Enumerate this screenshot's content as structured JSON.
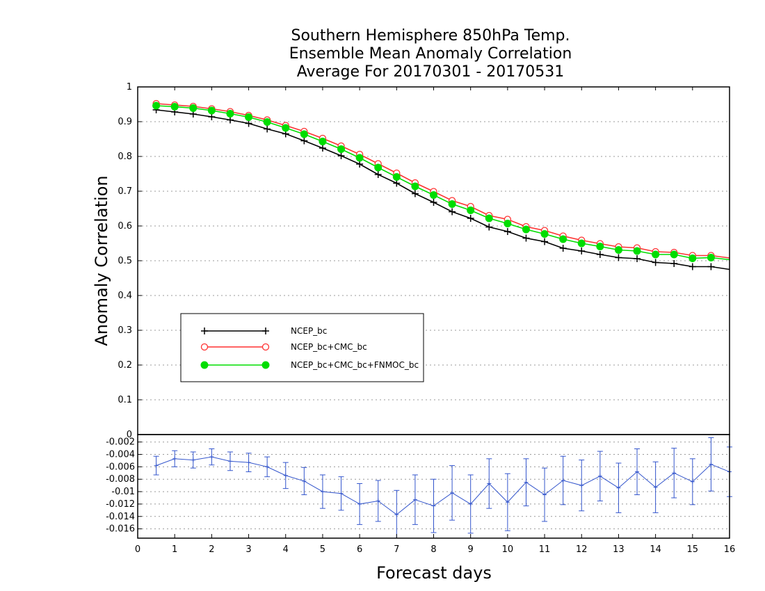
{
  "chart_data": {
    "type": "line",
    "title": [
      "Southern Hemisphere 850hPa Temp.",
      "Ensemble Mean Anomaly Correlation",
      "Average For 20170301 - 20170531"
    ],
    "xlabel": "Forecast days",
    "ylabel": "Anomaly Correlation",
    "xlim": [
      0,
      16
    ],
    "x_ticks": [
      "0",
      "1",
      "2",
      "3",
      "4",
      "5",
      "6",
      "7",
      "8",
      "9",
      "10",
      "11",
      "12",
      "13",
      "14",
      "15",
      "16"
    ],
    "top_panel": {
      "ylim": [
        0,
        1
      ],
      "y_ticks": [
        "0",
        "0.1",
        "0.2",
        "0.3",
        "0.4",
        "0.5",
        "0.6",
        "0.7",
        "0.8",
        "0.9",
        "1"
      ],
      "grid": true,
      "x": [
        0.5,
        1,
        1.5,
        2,
        2.5,
        3,
        3.5,
        4,
        4.5,
        5,
        5.5,
        6,
        6.5,
        7,
        7.5,
        8,
        8.5,
        9,
        9.5,
        10,
        10.5,
        11,
        11.5,
        12,
        12.5,
        13,
        13.5,
        14,
        14.5,
        15,
        15.5,
        16
      ],
      "series": [
        {
          "name": "NCEP_bc",
          "color": "#000000",
          "marker": "plus",
          "values": [
            0.934,
            0.928,
            0.922,
            0.914,
            0.905,
            0.895,
            0.879,
            0.865,
            0.845,
            0.824,
            0.802,
            0.778,
            0.748,
            0.723,
            0.693,
            0.668,
            0.641,
            0.622,
            0.597,
            0.584,
            0.565,
            0.555,
            0.536,
            0.528,
            0.518,
            0.509,
            0.506,
            0.495,
            0.492,
            0.483,
            0.483,
            0.475
          ]
        },
        {
          "name": "NCEP_bc+CMC_bc",
          "color": "#ff3030",
          "marker": "open-circle",
          "values": [
            0.952,
            0.948,
            0.944,
            0.937,
            0.929,
            0.918,
            0.905,
            0.889,
            0.872,
            0.852,
            0.83,
            0.806,
            0.779,
            0.752,
            0.724,
            0.699,
            0.673,
            0.656,
            0.63,
            0.619,
            0.598,
            0.587,
            0.571,
            0.559,
            0.549,
            0.54,
            0.537,
            0.526,
            0.524,
            0.515,
            0.515,
            0.508
          ]
        },
        {
          "name": "NCEP_bc+CMC_bc+FNMOC_bc",
          "color": "#00dd00",
          "marker": "filled-circle",
          "values": [
            0.946,
            0.943,
            0.939,
            0.932,
            0.923,
            0.913,
            0.899,
            0.882,
            0.864,
            0.843,
            0.821,
            0.796,
            0.768,
            0.741,
            0.714,
            0.689,
            0.663,
            0.645,
            0.622,
            0.607,
            0.59,
            0.577,
            0.562,
            0.55,
            0.541,
            0.531,
            0.528,
            0.518,
            0.518,
            0.507,
            0.509,
            0.503
          ]
        }
      ],
      "legend": {
        "placement": "lower-left"
      }
    },
    "bottom_panel": {
      "ylim": [
        -0.0175,
        -0.0008
      ],
      "y_ticks": [
        "-0.016",
        "-0.014",
        "-0.012",
        "-0.01",
        "-0.008",
        "-0.006",
        "-0.004",
        "-0.002"
      ],
      "y_tick_values": [
        -0.016,
        -0.014,
        -0.012,
        -0.01,
        -0.008,
        -0.006,
        -0.004,
        -0.002
      ],
      "grid": true,
      "color": "#3355cc",
      "x": [
        0.5,
        1,
        1.5,
        2,
        2.5,
        3,
        3.5,
        4,
        4.5,
        5,
        5.5,
        6,
        6.5,
        7,
        7.5,
        8,
        8.5,
        9,
        9.5,
        10,
        10.5,
        11,
        11.5,
        12,
        12.5,
        13,
        13.5,
        14,
        14.5,
        15,
        15.5,
        16
      ],
      "values": [
        -0.0058,
        -0.0047,
        -0.0049,
        -0.0044,
        -0.0051,
        -0.0053,
        -0.006,
        -0.0074,
        -0.0083,
        -0.01,
        -0.0103,
        -0.012,
        -0.0115,
        -0.0137,
        -0.0113,
        -0.0123,
        -0.0102,
        -0.012,
        -0.0087,
        -0.0117,
        -0.0085,
        -0.0105,
        -0.0082,
        -0.009,
        -0.0075,
        -0.0094,
        -0.0068,
        -0.0093,
        -0.007,
        -0.0084,
        -0.0056,
        -0.0068
      ],
      "error": [
        0.0015,
        0.0013,
        0.0013,
        0.0013,
        0.0015,
        0.0015,
        0.0016,
        0.0021,
        0.0022,
        0.0027,
        0.0027,
        0.0033,
        0.0033,
        0.0039,
        0.004,
        0.0043,
        0.0044,
        0.0047,
        0.004,
        0.0046,
        0.0038,
        0.0043,
        0.0039,
        0.0041,
        0.004,
        0.004,
        0.0037,
        0.0041,
        0.004,
        0.0037,
        0.0043,
        0.004
      ]
    }
  }
}
